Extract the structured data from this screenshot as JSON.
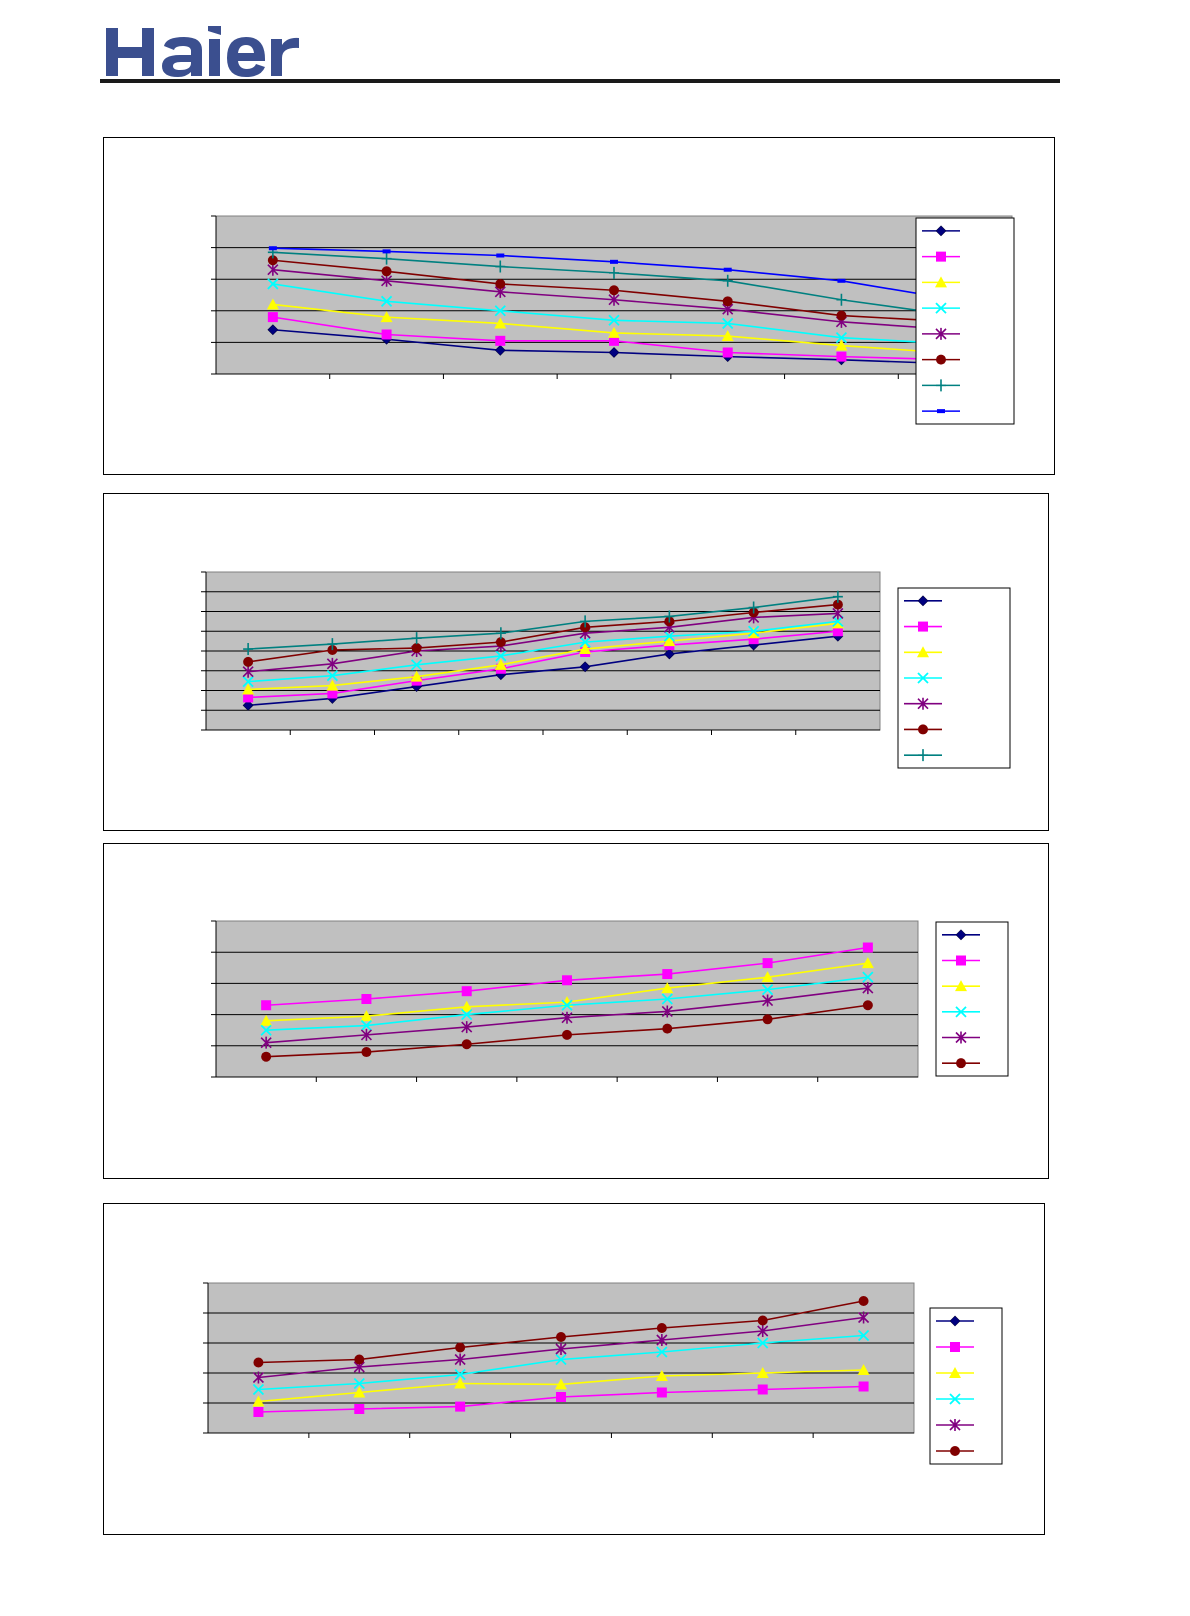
{
  "brand": {
    "name": "Haier",
    "color": "#3b4f8f"
  },
  "chart_data": [
    {
      "type": "line",
      "grid": true,
      "legend_position": "right",
      "series_count": 8,
      "x": [
        1,
        2,
        3,
        4,
        5,
        6,
        7
      ],
      "ylim": [
        0,
        5
      ],
      "series": [
        {
          "values": [
            1.4,
            1.1,
            0.75,
            0.68,
            0.55,
            0.45,
            0.32
          ],
          "color": "#000080",
          "marker": "diamond"
        },
        {
          "values": [
            1.8,
            1.25,
            1.05,
            1.05,
            0.68,
            0.55,
            0.45
          ],
          "color": "#ff00ff",
          "marker": "square"
        },
        {
          "values": [
            2.2,
            1.8,
            1.6,
            1.3,
            1.2,
            0.9,
            0.65
          ],
          "color": "#ffff00",
          "marker": "triangle"
        },
        {
          "values": [
            2.85,
            2.3,
            2.0,
            1.7,
            1.6,
            1.15,
            0.95
          ],
          "color": "#00ffff",
          "marker": "x"
        },
        {
          "values": [
            3.3,
            2.95,
            2.6,
            2.35,
            2.05,
            1.65,
            1.4
          ],
          "color": "#800080",
          "marker": "star"
        },
        {
          "values": [
            3.6,
            3.25,
            2.85,
            2.65,
            2.3,
            1.85,
            1.65
          ],
          "color": "#800000",
          "marker": "circle"
        },
        {
          "values": [
            3.85,
            3.65,
            3.4,
            3.2,
            2.95,
            2.35,
            1.85
          ],
          "color": "#008080",
          "marker": "plus"
        },
        {
          "values": [
            3.98,
            3.88,
            3.75,
            3.55,
            3.3,
            2.95,
            2.35
          ],
          "color": "#0000ff",
          "marker": "dash"
        }
      ]
    },
    {
      "type": "line",
      "grid": true,
      "legend_position": "right",
      "series_count": 7,
      "x": [
        1,
        2,
        3,
        4,
        5,
        6,
        7,
        8
      ],
      "ylim": [
        0,
        8
      ],
      "series": [
        {
          "values": [
            1.25,
            1.6,
            2.2,
            2.8,
            3.2,
            3.85,
            4.3,
            4.75
          ],
          "color": "#000080",
          "marker": "diamond"
        },
        {
          "values": [
            1.65,
            1.85,
            2.5,
            3.1,
            3.95,
            4.3,
            4.6,
            5.0
          ],
          "color": "#ff00ff",
          "marker": "square"
        },
        {
          "values": [
            2.05,
            2.25,
            2.7,
            3.3,
            4.1,
            4.5,
            4.9,
            5.4
          ],
          "color": "#ffff00",
          "marker": "triangle"
        },
        {
          "values": [
            2.45,
            2.75,
            3.3,
            3.75,
            4.45,
            4.75,
            5.0,
            5.5
          ],
          "color": "#00ffff",
          "marker": "x"
        },
        {
          "values": [
            2.95,
            3.35,
            4.0,
            4.25,
            4.9,
            5.2,
            5.7,
            5.9
          ],
          "color": "#800080",
          "marker": "star"
        },
        {
          "values": [
            3.45,
            4.05,
            4.15,
            4.45,
            5.2,
            5.5,
            5.95,
            6.35
          ],
          "color": "#800000",
          "marker": "circle"
        },
        {
          "values": [
            4.1,
            4.35,
            4.65,
            4.9,
            5.5,
            5.75,
            6.2,
            6.75
          ],
          "color": "#008080",
          "marker": "plus"
        }
      ]
    },
    {
      "type": "line",
      "grid": true,
      "legend_position": "right",
      "series_count": 6,
      "x": [
        1,
        2,
        3,
        4,
        5,
        6,
        7
      ],
      "ylim": [
        0,
        5
      ],
      "series": [
        {
          "values": [
            2.3,
            2.5,
            2.75,
            3.1,
            3.3,
            3.65,
            4.15
          ],
          "color": "#ff00ff",
          "marker": "square"
        },
        {
          "values": [
            1.8,
            1.95,
            2.25,
            2.4,
            2.85,
            3.2,
            3.65
          ],
          "color": "#ffff00",
          "marker": "triangle"
        },
        {
          "values": [
            1.5,
            1.65,
            2.0,
            2.3,
            2.5,
            2.8,
            3.2
          ],
          "color": "#00ffff",
          "marker": "x"
        },
        {
          "values": [
            1.1,
            1.35,
            1.6,
            1.9,
            2.1,
            2.45,
            2.85
          ],
          "color": "#800080",
          "marker": "star"
        },
        {
          "values": [
            0.65,
            0.8,
            1.05,
            1.35,
            1.55,
            1.85,
            2.3
          ],
          "color": "#800000",
          "marker": "circle"
        }
      ],
      "legend_series": [
        {
          "color": "#000080",
          "marker": "diamond"
        },
        {
          "color": "#ff00ff",
          "marker": "square"
        },
        {
          "color": "#ffff00",
          "marker": "triangle"
        },
        {
          "color": "#00ffff",
          "marker": "x"
        },
        {
          "color": "#800080",
          "marker": "star"
        },
        {
          "color": "#800000",
          "marker": "circle"
        }
      ]
    },
    {
      "type": "line",
      "grid": true,
      "legend_position": "right",
      "series_count": 6,
      "x": [
        1,
        2,
        3,
        4,
        5,
        6,
        7
      ],
      "ylim": [
        0,
        5
      ],
      "series": [
        {
          "values": [
            0.7,
            0.8,
            0.88,
            1.2,
            1.35,
            1.45,
            1.55
          ],
          "color": "#ff00ff",
          "marker": "square"
        },
        {
          "values": [
            1.05,
            1.35,
            1.65,
            1.62,
            1.9,
            2.0,
            2.1
          ],
          "color": "#ffff00",
          "marker": "triangle"
        },
        {
          "values": [
            1.45,
            1.65,
            1.95,
            2.45,
            2.7,
            3.0,
            3.25
          ],
          "color": "#00ffff",
          "marker": "x"
        },
        {
          "values": [
            1.85,
            2.2,
            2.45,
            2.8,
            3.1,
            3.4,
            3.85
          ],
          "color": "#800080",
          "marker": "star"
        },
        {
          "values": [
            2.35,
            2.45,
            2.85,
            3.2,
            3.5,
            3.75,
            4.4
          ],
          "color": "#800000",
          "marker": "circle"
        }
      ],
      "legend_series": [
        {
          "color": "#000080",
          "marker": "diamond"
        },
        {
          "color": "#ff00ff",
          "marker": "square"
        },
        {
          "color": "#ffff00",
          "marker": "triangle"
        },
        {
          "color": "#00ffff",
          "marker": "x"
        },
        {
          "color": "#800080",
          "marker": "star"
        },
        {
          "color": "#800000",
          "marker": "circle"
        }
      ]
    }
  ]
}
